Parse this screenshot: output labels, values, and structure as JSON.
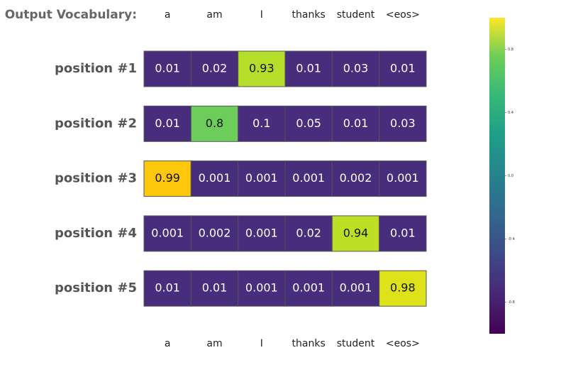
{
  "chart_data": {
    "type": "heatmap",
    "title": "Output Vocabulary:",
    "categories": [
      "a",
      "am",
      "I",
      "thanks",
      "student",
      "<eos>"
    ],
    "series": [
      {
        "name": "position #1",
        "values": [
          0.01,
          0.02,
          0.93,
          0.01,
          0.03,
          0.01
        ],
        "colors": [
          "#472d7b",
          "#472d7b",
          "#b5de2b",
          "#472d7b",
          "#472d7b",
          "#472d7b"
        ]
      },
      {
        "name": "position #2",
        "values": [
          0.01,
          0.8,
          0.1,
          0.05,
          0.01,
          0.03
        ],
        "colors": [
          "#472d7b",
          "#6ccd5a",
          "#472d7b",
          "#472d7b",
          "#472d7b",
          "#472d7b"
        ]
      },
      {
        "name": "position #3",
        "values": [
          0.99,
          0.001,
          0.001,
          0.001,
          0.002,
          0.001
        ],
        "colors": [
          "#fdc70c",
          "#472d7b",
          "#472d7b",
          "#472d7b",
          "#472d7b",
          "#472d7b"
        ]
      },
      {
        "name": "position #4",
        "values": [
          0.001,
          0.002,
          0.001,
          0.02,
          0.94,
          0.01
        ],
        "colors": [
          "#472d7b",
          "#472d7b",
          "#472d7b",
          "#472d7b",
          "#bddf26",
          "#472d7b"
        ]
      },
      {
        "name": "position #5",
        "values": [
          0.01,
          0.01,
          0.001,
          0.001,
          0.001,
          0.98
        ],
        "colors": [
          "#472d7b",
          "#472d7b",
          "#472d7b",
          "#472d7b",
          "#472d7b",
          "#dde318"
        ]
      }
    ],
    "clim": [
      -1,
      1
    ],
    "cticks": [
      0.8,
      0.4,
      {
        "value": 0,
        "label": "0.0"
      },
      -0.4,
      -0.8
    ]
  }
}
